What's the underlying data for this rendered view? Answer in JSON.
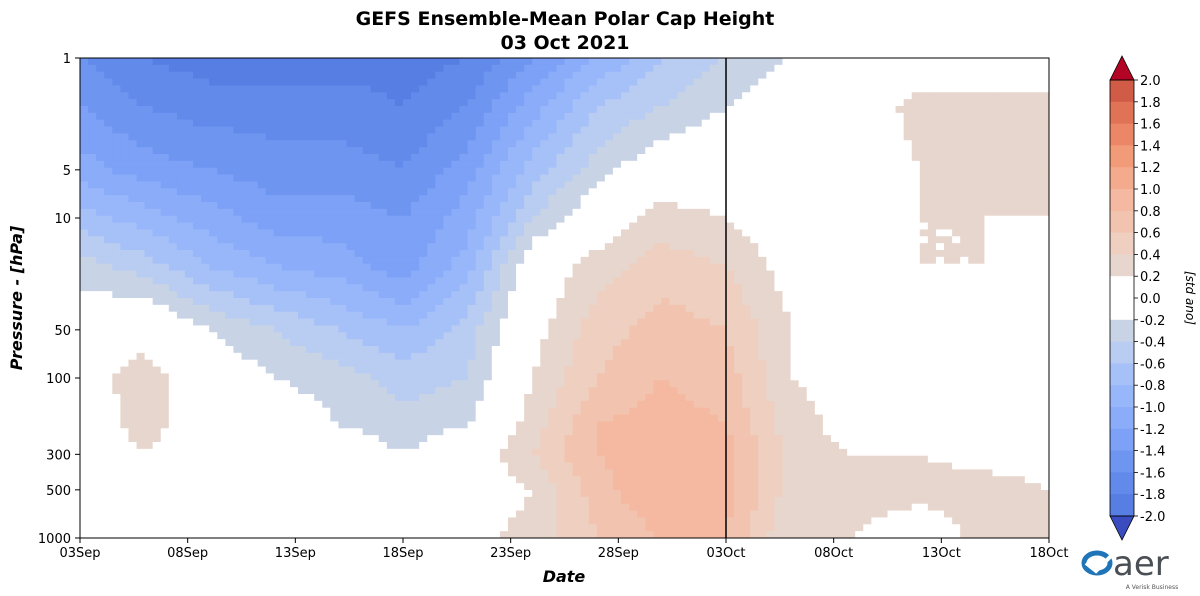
{
  "chart_data": {
    "type": "heatmap",
    "title": "GEFS Ensemble-Mean Polar Cap Height",
    "subtitle": "03 Oct 2021",
    "xlabel": "Date",
    "ylabel": "Pressure - [hPa]",
    "x_ticks": [
      "03Sep",
      "08Sep",
      "13Sep",
      "18Sep",
      "23Sep",
      "28Sep",
      "03Oct",
      "08Oct",
      "13Oct",
      "18Oct"
    ],
    "x_range_days": [
      0,
      45
    ],
    "y_scale": "log",
    "y_inverted": true,
    "y_range": [
      1000,
      1
    ],
    "y_ticks": [
      1000,
      500,
      300,
      100,
      50,
      10,
      5,
      1
    ],
    "y_tick_labels": [
      "1000",
      "500",
      "300",
      "100",
      "50",
      "10",
      "5",
      "1"
    ],
    "forecast_start_line": "03Oct",
    "colorbar": {
      "label": "[std ano]",
      "min": -2.0,
      "max": 2.0,
      "step": 0.2,
      "extend": "both",
      "tick_labels": [
        "2.0",
        "1.8",
        "1.6",
        "1.4",
        "1.2",
        "1.0",
        "0.8",
        "0.6",
        "0.4",
        "0.2",
        "0.0",
        "-0.2",
        "-0.4",
        "-0.6",
        "-0.8",
        "-1.0",
        "-1.2",
        "-1.4",
        "-1.6",
        "-1.8",
        "-2.0"
      ],
      "colors_negative": [
        "#c8d4e6",
        "#b9ccf1",
        "#a6c0f8",
        "#98b6fa",
        "#8aacf9",
        "#7ca1f6",
        "#6e96f1",
        "#628aeb",
        "#567ee3",
        "#4a71da"
      ],
      "colors_positive": [
        "#e7d6cd",
        "#eecfc0",
        "#f2c4b0",
        "#f4b9a0",
        "#f4aa8c",
        "#f29b79",
        "#eb8766",
        "#e07256",
        "#d05b47",
        "#b9393a"
      ],
      "under_color": "#3b4cc0",
      "over_color": "#b40426",
      "zero_color": "#ffffff"
    },
    "anomaly_field": {
      "time_days": [
        0,
        3,
        6,
        9,
        12,
        15,
        18,
        21,
        24,
        27,
        30,
        33,
        36,
        39,
        42,
        45
      ],
      "pressure_hPa": [
        1000,
        500,
        300,
        200,
        100,
        50,
        20,
        10,
        5,
        2,
        1
      ],
      "values": [
        [
          0.15,
          0.0,
          0.1,
          -0.2,
          0.0,
          0.0,
          0.1,
          0.3,
          0.6,
          0.8,
          0.8,
          0.2,
          0.2,
          0.0,
          0.3,
          0.2
        ],
        [
          0.0,
          0.0,
          0.2,
          0.2,
          0.0,
          0.0,
          0.0,
          0.2,
          0.7,
          1.0,
          0.9,
          0.3,
          0.3,
          0.3,
          0.3,
          0.2
        ],
        [
          0.0,
          0.2,
          0.0,
          0.2,
          0.0,
          -0.2,
          0.0,
          0.4,
          0.8,
          1.0,
          0.9,
          0.3,
          0.2,
          0.2,
          0.1,
          0.1
        ],
        [
          0.0,
          0.3,
          0.0,
          0.0,
          -0.2,
          -0.3,
          -0.2,
          0.3,
          0.8,
          0.9,
          0.8,
          0.3,
          0.1,
          0.0,
          0.0,
          0.0
        ],
        [
          0.1,
          0.3,
          0.0,
          -0.2,
          -0.3,
          -0.5,
          -0.4,
          0.2,
          0.6,
          0.8,
          0.7,
          0.2,
          0.1,
          0.0,
          0.0,
          -0.2
        ],
        [
          0.0,
          0.1,
          -0.2,
          -0.4,
          -0.6,
          -0.8,
          -0.5,
          0.1,
          0.5,
          0.7,
          0.6,
          0.2,
          0.1,
          0.0,
          0.0,
          -0.2
        ],
        [
          -0.3,
          -0.5,
          -0.8,
          -1.0,
          -1.1,
          -1.3,
          -0.9,
          0.0,
          0.3,
          0.5,
          0.4,
          0.1,
          0.2,
          0.2,
          0.2,
          0.0
        ],
        [
          -0.7,
          -0.9,
          -1.1,
          -1.3,
          -1.3,
          -1.4,
          -1.1,
          -0.4,
          0.0,
          0.3,
          0.2,
          0.0,
          0.0,
          0.2,
          0.2,
          0.2
        ],
        [
          -1.1,
          -1.3,
          -1.4,
          -1.5,
          -1.5,
          -1.6,
          -1.3,
          -0.7,
          -0.3,
          0.0,
          0.0,
          -0.2,
          0.0,
          0.2,
          0.4,
          0.3
        ],
        [
          -1.4,
          -1.6,
          -1.7,
          -1.7,
          -1.7,
          -1.8,
          -1.6,
          -1.1,
          -0.6,
          -0.4,
          -0.2,
          0.0,
          0.0,
          0.3,
          0.4,
          0.3
        ],
        [
          -1.6,
          -1.8,
          -1.9,
          -1.9,
          -1.9,
          -1.9,
          -1.8,
          -1.4,
          -1.0,
          -0.6,
          -0.4,
          -0.2,
          -0.2,
          0.0,
          -0.2,
          0.0
        ]
      ]
    }
  },
  "logo": {
    "brand": "aer",
    "tagline": "A Verisk Business",
    "colors": [
      "#1f75b8",
      "#4a4f56"
    ]
  }
}
